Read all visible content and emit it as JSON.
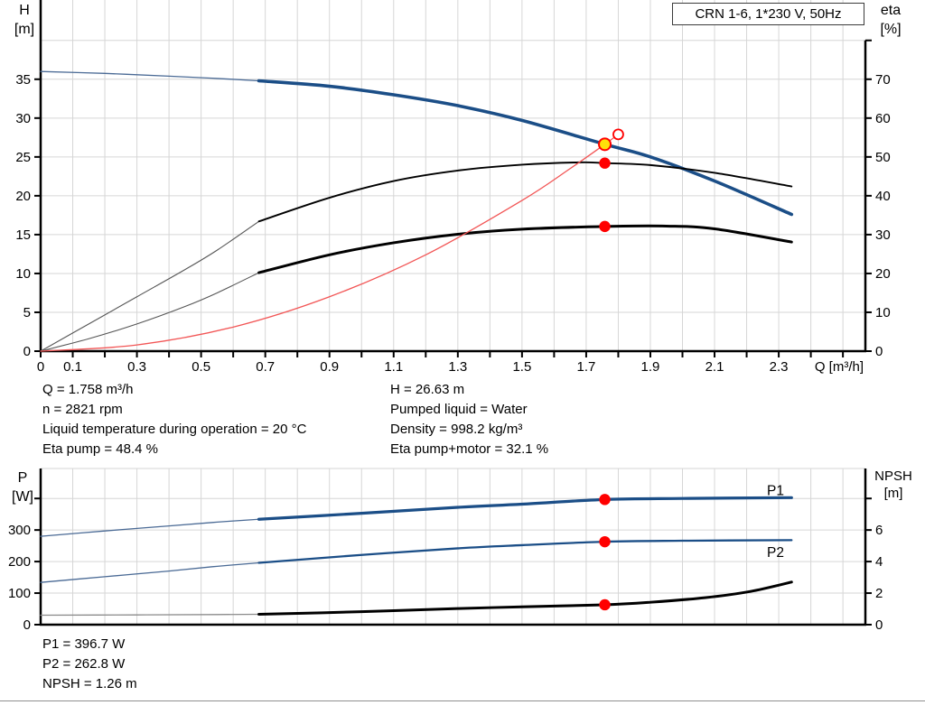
{
  "title_box": {
    "label": "CRN 1-6, 1*230 V, 50Hz"
  },
  "colors": {
    "curve_blue": "#1b4e87",
    "curve_blue_thin": "#4a6a95",
    "curve_black": "#000000",
    "curve_black_thin": "#555555",
    "npsh_thin": "#8a8a8a",
    "system_red": "#f25555",
    "marker_red": "#ff0000",
    "duty_yellow": "#ffe10a",
    "grid": "#d6d6d6",
    "axis": "#000000",
    "label_blue": "#1f5fa0"
  },
  "annotations": {
    "duty_left": [
      "Q = 1.758 m³/h",
      "n = 2821 rpm",
      "Liquid temperature during operation = 20 °C",
      "Eta pump = 48.4 %"
    ],
    "duty_right": [
      "H = 26.63 m",
      "Pumped liquid = Water",
      "Density = 998.2 kg/m³",
      "Eta pump+motor = 32.1 %"
    ],
    "power": [
      "P1 = 396.7 W",
      "P2 = 262.8 W",
      "NPSH = 1.26 m"
    ]
  },
  "chart_data": [
    {
      "type": "line",
      "name": "head-efficiency-curve",
      "title": "CRN 1-6, 1*230 V, 50Hz",
      "x": {
        "label": "Q [m³/h]",
        "min": 0,
        "max": 2.57,
        "tick_step": 0.1,
        "tick_max": 2.5,
        "show_ticks": true,
        "tick_labels": [
          [
            0,
            "0"
          ],
          [
            0.1,
            "0.1"
          ],
          [
            0.3,
            "0.3"
          ],
          [
            0.5,
            "0.5"
          ],
          [
            0.7,
            "0.7"
          ],
          [
            0.9,
            "0.9"
          ],
          [
            1.1,
            "1.1"
          ],
          [
            1.3,
            "1.3"
          ],
          [
            1.5,
            "1.5"
          ],
          [
            1.7,
            "1.7"
          ],
          [
            1.9,
            "1.9"
          ],
          [
            2.1,
            "2.1"
          ],
          [
            2.3,
            "2.3"
          ]
        ]
      },
      "y_left": {
        "title": [
          "H",
          "[m]"
        ],
        "min": 0,
        "max": 45.2,
        "ticks": [
          0,
          5,
          10,
          15,
          20,
          25,
          30,
          35
        ],
        "ticks_extra": [],
        "grid": [
          5,
          10,
          15,
          20,
          25,
          30,
          35,
          40
        ]
      },
      "y_right": {
        "title": [
          "eta",
          "[%]"
        ],
        "min": 0,
        "max": 90.4,
        "ticks": [
          0,
          10,
          20,
          30,
          40,
          50,
          60,
          70
        ],
        "ticks_extra": [
          80
        ],
        "axis_from": 80
      },
      "series": [
        {
          "id": "hq-curve-thin",
          "axis": "left",
          "color": "curve_blue_thin",
          "width": 1.3,
          "points": [
            [
              0,
              36
            ],
            [
              0.2,
              35.75
            ],
            [
              0.4,
              35.4
            ],
            [
              0.55,
              35.1
            ],
            [
              0.68,
              34.8
            ]
          ]
        },
        {
          "id": "hq-curve",
          "axis": "left",
          "color": "curve_blue",
          "width": 3.6,
          "points": [
            [
              0.68,
              34.8
            ],
            [
              0.9,
              34.1
            ],
            [
              1.1,
              33.0
            ],
            [
              1.3,
              31.6
            ],
            [
              1.5,
              29.7
            ],
            [
              1.758,
              26.63
            ],
            [
              1.9,
              25.0
            ],
            [
              2.1,
              21.9
            ],
            [
              2.34,
              17.6
            ]
          ]
        },
        {
          "id": "eta-pump-curve-thin",
          "axis": "right",
          "color": "curve_black_thin",
          "width": 1.1,
          "points": [
            [
              0,
              0
            ],
            [
              0.15,
              7
            ],
            [
              0.3,
              14
            ],
            [
              0.45,
              21
            ],
            [
              0.55,
              26
            ],
            [
              0.68,
              33.4
            ]
          ]
        },
        {
          "id": "eta-pump-curve",
          "axis": "right",
          "color": "curve_black",
          "width": 1.9,
          "points": [
            [
              0.68,
              33.4
            ],
            [
              0.9,
              39.5
            ],
            [
              1.1,
              43.8
            ],
            [
              1.3,
              46.5
            ],
            [
              1.5,
              48.0
            ],
            [
              1.68,
              48.6
            ],
            [
              1.758,
              48.4
            ],
            [
              1.9,
              47.9
            ],
            [
              2.1,
              45.9
            ],
            [
              2.34,
              42.4
            ]
          ]
        },
        {
          "id": "eta-total-curve-thin",
          "axis": "right",
          "color": "curve_black_thin",
          "width": 1.1,
          "points": [
            [
              0,
              0
            ],
            [
              0.15,
              3.2
            ],
            [
              0.3,
              7
            ],
            [
              0.45,
              11.5
            ],
            [
              0.55,
              15
            ],
            [
              0.68,
              20.2
            ]
          ]
        },
        {
          "id": "eta-total-curve",
          "axis": "right",
          "color": "curve_black",
          "width": 3,
          "points": [
            [
              0.68,
              20.2
            ],
            [
              0.9,
              24.8
            ],
            [
              1.1,
              27.9
            ],
            [
              1.3,
              30.1
            ],
            [
              1.5,
              31.4
            ],
            [
              1.758,
              32.1
            ],
            [
              1.95,
              32.2
            ],
            [
              2.1,
              31.5
            ],
            [
              2.34,
              28.1
            ]
          ]
        },
        {
          "id": "system-curve",
          "axis": "left",
          "color": "system_red",
          "width": 1.3,
          "points": [
            [
              0,
              0
            ],
            [
              0.3,
              0.8
            ],
            [
              0.6,
              3.1
            ],
            [
              0.9,
              7.0
            ],
            [
              1.2,
              12.4
            ],
            [
              1.5,
              19.4
            ],
            [
              1.65,
              23.5
            ],
            [
              1.758,
              26.63
            ],
            [
              1.8,
              27.9
            ]
          ]
        }
      ],
      "markers": [
        {
          "id": "eta-pump-point-marker",
          "axis": "right",
          "q": 1.758,
          "v": 48.4,
          "r": 6.2,
          "fill": "marker_red"
        },
        {
          "id": "eta-total-point-marker",
          "axis": "right",
          "q": 1.758,
          "v": 32.1,
          "r": 6.2,
          "fill": "marker_red"
        },
        {
          "id": "rated-point-marker",
          "axis": "left",
          "q": 1.8,
          "v": 27.9,
          "r": 5.5,
          "fill": "#ffffff",
          "stroke": "marker_red",
          "sw": 1.8
        },
        {
          "id": "duty-point-marker",
          "axis": "left",
          "q": 1.758,
          "v": 26.63,
          "r": 6.5,
          "fill": "duty_yellow",
          "stroke": "marker_red",
          "sw": 2
        }
      ],
      "labels": []
    },
    {
      "type": "line",
      "name": "power-npsh-curve",
      "x": {
        "label": "",
        "min": 0,
        "max": 2.57,
        "tick_step": 0.1,
        "tick_max": 2.5,
        "show_ticks": false,
        "tick_labels": []
      },
      "y_left": {
        "title": [
          "P",
          "[W]"
        ],
        "min": 0,
        "max": 495,
        "ticks": [
          0,
          100,
          200,
          300
        ],
        "ticks_extra": [
          400
        ],
        "grid": [
          100,
          200,
          300,
          400,
          495
        ]
      },
      "y_right": {
        "title": [
          "NPSH",
          "[m]"
        ],
        "min": 0,
        "max": 9.9,
        "ticks": [
          0,
          2,
          4,
          6
        ],
        "ticks_extra": [
          8
        ],
        "axis_from": null
      },
      "series": [
        {
          "id": "p1-curve-thin",
          "axis": "left",
          "color": "curve_blue_thin",
          "width": 1.3,
          "points": [
            [
              0,
              280
            ],
            [
              0.2,
              297
            ],
            [
              0.4,
              313
            ],
            [
              0.55,
              325
            ],
            [
              0.68,
              334
            ]
          ]
        },
        {
          "id": "p1-curve",
          "axis": "left",
          "color": "curve_blue",
          "width": 3.2,
          "points": [
            [
              0.68,
              334
            ],
            [
              1.0,
              353
            ],
            [
              1.3,
              372
            ],
            [
              1.5,
              382
            ],
            [
              1.758,
              396.7
            ],
            [
              2.0,
              400
            ],
            [
              2.34,
              402.5
            ]
          ]
        },
        {
          "id": "p2-curve-thin",
          "axis": "left",
          "color": "curve_blue_thin",
          "width": 1.3,
          "points": [
            [
              0,
              134
            ],
            [
              0.2,
              152
            ],
            [
              0.4,
              170
            ],
            [
              0.55,
              185
            ],
            [
              0.68,
              196
            ]
          ]
        },
        {
          "id": "p2-curve",
          "axis": "left",
          "color": "curve_blue",
          "width": 2.3,
          "points": [
            [
              0.68,
              196
            ],
            [
              1.0,
              221
            ],
            [
              1.3,
              242
            ],
            [
              1.5,
              252
            ],
            [
              1.758,
              262.8
            ],
            [
              2.0,
              266
            ],
            [
              2.34,
              268
            ]
          ]
        },
        {
          "id": "npsh-curve-thin",
          "axis": "right",
          "color": "npsh_thin",
          "width": 1.3,
          "points": [
            [
              0,
              0.6
            ],
            [
              0.3,
              0.62
            ],
            [
              0.55,
              0.64
            ],
            [
              0.68,
              0.66
            ]
          ]
        },
        {
          "id": "npsh-curve",
          "axis": "right",
          "color": "curve_black",
          "width": 3,
          "points": [
            [
              0.68,
              0.66
            ],
            [
              1.0,
              0.82
            ],
            [
              1.3,
              1.02
            ],
            [
              1.5,
              1.13
            ],
            [
              1.758,
              1.26
            ],
            [
              1.9,
              1.42
            ],
            [
              2.07,
              1.71
            ],
            [
              2.21,
              2.1
            ],
            [
              2.34,
              2.7
            ]
          ]
        }
      ],
      "markers": [
        {
          "id": "p1-point-marker",
          "axis": "left",
          "q": 1.758,
          "v": 396.7,
          "r": 6.2,
          "fill": "marker_red"
        },
        {
          "id": "p2-point-marker",
          "axis": "left",
          "q": 1.758,
          "v": 262.8,
          "r": 6.2,
          "fill": "marker_red"
        },
        {
          "id": "npsh-point-marker",
          "axis": "right",
          "q": 1.758,
          "v": 1.26,
          "r": 6.2,
          "fill": "marker_red"
        }
      ],
      "labels": [
        {
          "id": "p1-curve-label",
          "text": "P1",
          "q": 2.29,
          "v": 410,
          "axis": "left",
          "color": "label_blue"
        },
        {
          "id": "p2-curve-label",
          "text": "P2",
          "q": 2.29,
          "v": 215,
          "axis": "left",
          "color": "label_blue"
        }
      ]
    }
  ]
}
